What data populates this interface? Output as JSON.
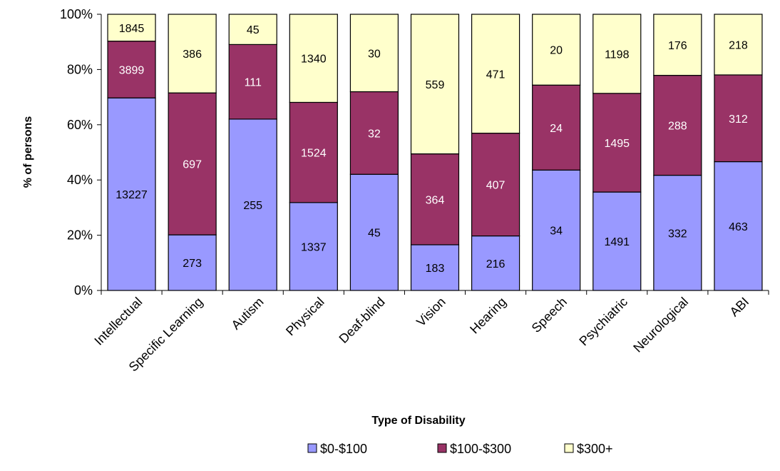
{
  "chart_data": {
    "type": "bar",
    "stacked": true,
    "normalized": true,
    "title": "",
    "xlabel": "Type of Disability",
    "ylabel": "% of persons",
    "ylim": [
      0,
      100
    ],
    "yticks": [
      "0%",
      "20%",
      "40%",
      "60%",
      "80%",
      "100%"
    ],
    "grid": false,
    "legend_position": "bottom",
    "categories": [
      "Intellectual",
      "Specific Learning",
      "Autism",
      "Physical",
      "Deaf-blind",
      "Vision",
      "Hearing",
      "Speech",
      "Psychiatric",
      "Neurological",
      "ABI"
    ],
    "series": [
      {
        "name": "$0-$100",
        "color": "#9999ff",
        "label_color": "#000000",
        "values": [
          13227,
          273,
          255,
          1337,
          45,
          183,
          216,
          34,
          1491,
          332,
          463
        ]
      },
      {
        "name": "$100-$300",
        "color": "#993366",
        "label_color": "#ffffff",
        "values": [
          3899,
          697,
          111,
          1524,
          32,
          364,
          407,
          24,
          1495,
          288,
          312
        ]
      },
      {
        "name": "$300+",
        "color": "#ffffcc",
        "label_color": "#000000",
        "values": [
          1845,
          386,
          45,
          1340,
          30,
          559,
          471,
          20,
          1198,
          176,
          218
        ]
      }
    ]
  }
}
